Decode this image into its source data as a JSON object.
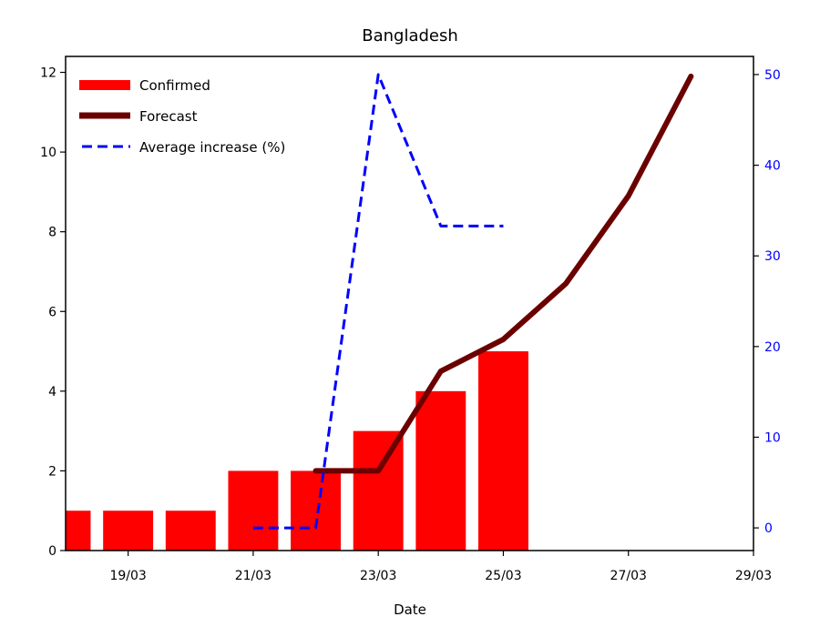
{
  "chart_data": {
    "type": "bar",
    "title": "Bangladesh",
    "xlabel": "Date",
    "ylabel": "",
    "ylabel_right": "",
    "x_tick_labels": [
      "19/03",
      "21/03",
      "23/03",
      "25/03",
      "27/03",
      "29/03"
    ],
    "x_tick_values": [
      19,
      21,
      23,
      25,
      27,
      29
    ],
    "xlim": [
      18,
      29
    ],
    "ylim": [
      0,
      12.4
    ],
    "y_ticks": [
      0,
      2,
      4,
      6,
      8,
      10,
      12
    ],
    "ylim_right": [
      -2.5,
      52
    ],
    "y_ticks_right": [
      0,
      10,
      20,
      30,
      40,
      50
    ],
    "grid": false,
    "legend_position": "top-left",
    "bars": {
      "name": "Confirmed",
      "x": [
        18,
        19,
        20,
        21,
        22,
        23,
        24,
        25
      ],
      "values": [
        1,
        1,
        1,
        2,
        2,
        3,
        4,
        5
      ],
      "color": "#ff0000"
    },
    "series": [
      {
        "name": "Forecast",
        "axis": "left",
        "style": "solid",
        "color": "#6b0000",
        "x": [
          22,
          23,
          24,
          25,
          26,
          27,
          28
        ],
        "values": [
          2.0,
          2.0,
          4.5,
          5.3,
          6.7,
          8.9,
          11.9
        ]
      },
      {
        "name": "Average increase (%)",
        "axis": "right",
        "style": "dashed",
        "color": "#0000ff",
        "x": [
          21,
          22,
          23,
          24,
          25
        ],
        "values": [
          0,
          0,
          50,
          33.3,
          33.3
        ]
      }
    ]
  }
}
